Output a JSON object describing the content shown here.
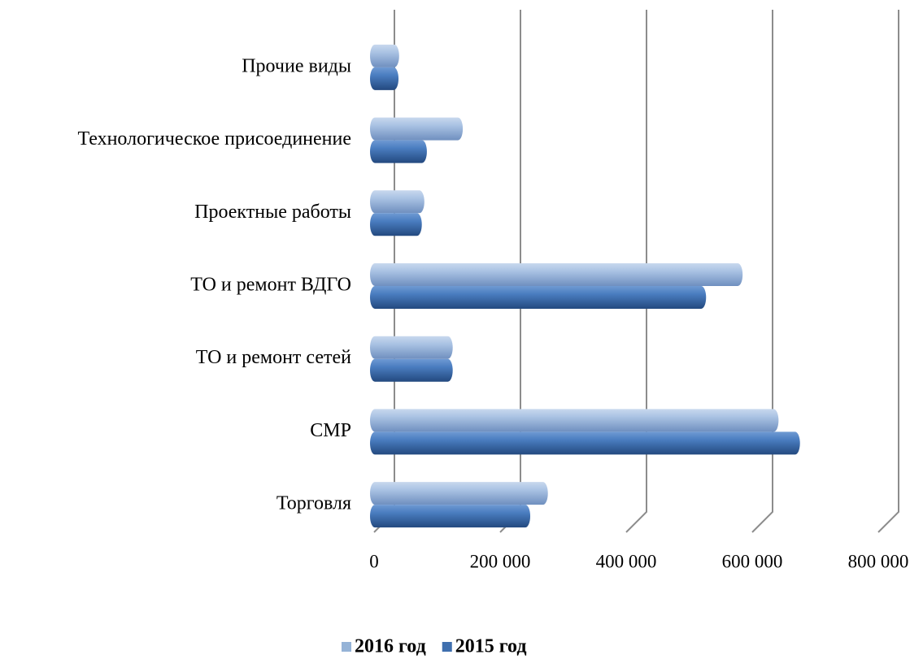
{
  "chart_data": {
    "type": "bar",
    "orientation": "horizontal",
    "categories": [
      "Прочие виды",
      "Технологическое присоединение",
      "Проектные работы",
      "ТО и ремонт ВДГО",
      "ТО и ремонт сетей",
      "СМР",
      "Торговля"
    ],
    "series": [
      {
        "name": "2016 год",
        "color": "#95b3d7",
        "values": [
          23000,
          124000,
          63000,
          568000,
          108000,
          625000,
          259000
        ]
      },
      {
        "name": "2015 год",
        "color": "#3f6fae",
        "values": [
          22000,
          67000,
          59000,
          510000,
          108000,
          659000,
          231000
        ]
      }
    ],
    "xlim": [
      0,
      800000
    ],
    "xticks": [
      0,
      {
        "value": 200000,
        "label": "200 000"
      },
      {
        "value": 400000,
        "label": "400 000"
      },
      {
        "value": 600000,
        "label": "600 000"
      },
      {
        "value": 800000,
        "label": "800 000"
      }
    ],
    "grid": true,
    "legend": "bottom"
  }
}
